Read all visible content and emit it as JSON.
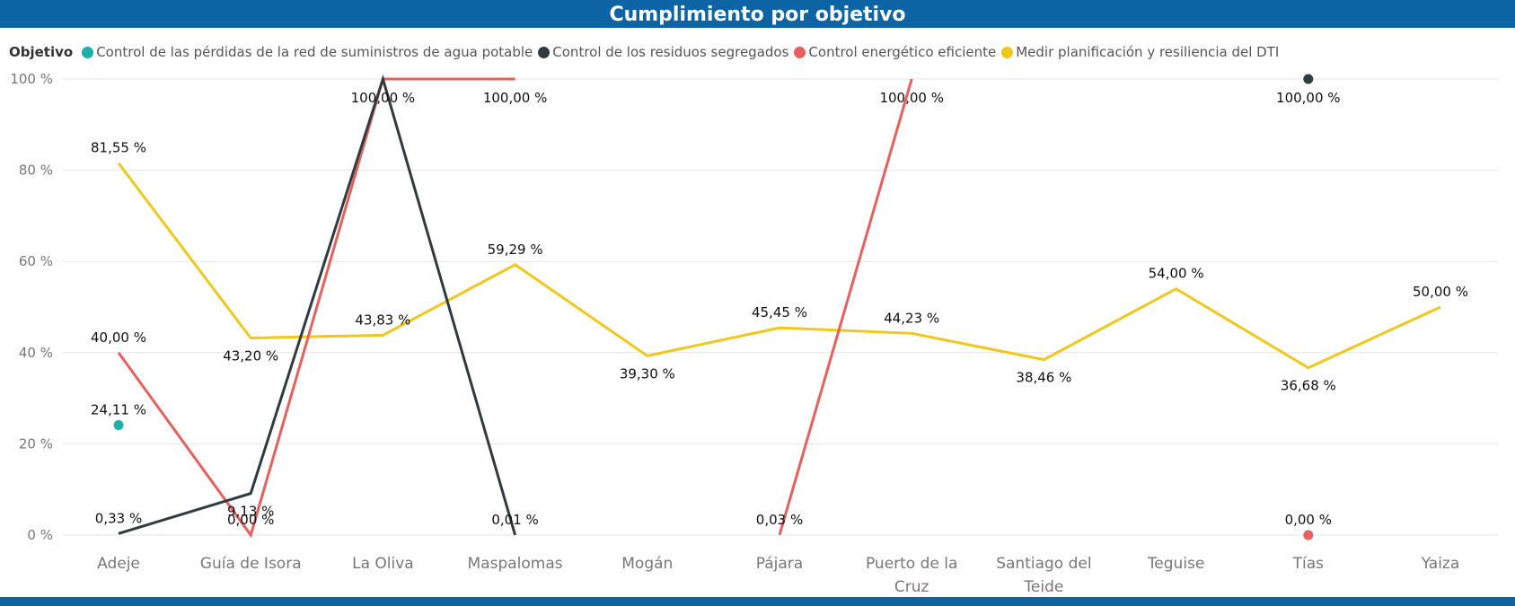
{
  "chart_data": {
    "type": "line",
    "title": "Cumplimiento por objetivo",
    "legend_title": "Objetivo",
    "legend_position": "top-left",
    "grid": true,
    "ylim": [
      0,
      100
    ],
    "yticks": [
      0,
      20,
      40,
      60,
      80,
      100
    ],
    "ytick_labels": [
      "0 %",
      "20 %",
      "40 %",
      "60 %",
      "80 %",
      "100 %"
    ],
    "categories": [
      "Adeje",
      "Guía de Isora",
      "La Oliva",
      "Maspalomas",
      "Mogán",
      "Pájara",
      "Puerto de la Cruz",
      "Santiago del Teide",
      "Teguise",
      "Tías",
      "Yaiza"
    ],
    "category_lines": [
      [
        "Adeje"
      ],
      [
        "Guía de Isora"
      ],
      [
        "La Oliva"
      ],
      [
        "Maspalomas"
      ],
      [
        "Mogán"
      ],
      [
        "Pájara"
      ],
      [
        "Puerto de la",
        "Cruz"
      ],
      [
        "Santiago del",
        "Teide"
      ],
      [
        "Teguise"
      ],
      [
        "Tías"
      ],
      [
        "Yaiza"
      ]
    ],
    "series": [
      {
        "name": "Control de las pérdidas de la red de suministros de agua potable",
        "color": "#1ab2a8",
        "values": [
          24.11,
          null,
          null,
          null,
          null,
          null,
          null,
          null,
          null,
          null,
          null
        ],
        "labels": [
          "24,11 %",
          null,
          null,
          null,
          null,
          null,
          null,
          null,
          null,
          null,
          null
        ]
      },
      {
        "name": "Control de los residuos segregados",
        "color": "#2f3b40",
        "values": [
          0.33,
          9.13,
          100,
          0.01,
          null,
          null,
          null,
          null,
          null,
          100,
          null
        ],
        "labels": [
          "0,33 %",
          "9,13 %",
          null,
          "0,01 %",
          null,
          null,
          null,
          null,
          null,
          "100,00 %",
          null
        ]
      },
      {
        "name": "Control energético eficiente",
        "color": "#e8605c",
        "values": [
          40,
          0,
          100,
          100,
          null,
          0.03,
          100,
          null,
          null,
          0,
          null
        ],
        "labels": [
          "40,00 %",
          "0,00 %",
          "100,00 %",
          "100,00 %",
          null,
          "0,03 %",
          "100,00 %",
          null,
          null,
          "0,00 %",
          null
        ]
      },
      {
        "name": "Medir planificación y resiliencia del DTI",
        "color": "#f0c81c",
        "values": [
          81.55,
          43.2,
          43.83,
          59.29,
          39.3,
          45.45,
          44.23,
          38.46,
          54,
          36.68,
          50
        ],
        "labels": [
          "81,55 %",
          "43,20 %",
          "43,83 %",
          "59,29 %",
          "39,30 %",
          "45,45 %",
          "44,23 %",
          "38,46 %",
          "54,00 %",
          "36,68 %",
          "50,00 %"
        ]
      }
    ]
  }
}
